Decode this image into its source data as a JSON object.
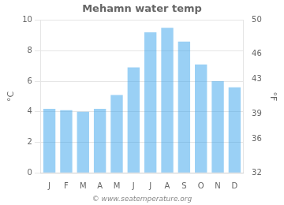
{
  "chart_data": {
    "type": "bar",
    "title": "Mehamn water temp",
    "categories": [
      "J",
      "F",
      "M",
      "A",
      "M",
      "J",
      "J",
      "A",
      "S",
      "O",
      "N",
      "D"
    ],
    "values": [
      4.2,
      4.1,
      4.0,
      4.2,
      5.1,
      6.9,
      9.2,
      9.5,
      8.6,
      7.1,
      6.0,
      5.6
    ],
    "ylabel": "°C",
    "y2label": "°F",
    "ylim": [
      0,
      10
    ],
    "yticks": [
      0,
      2,
      4,
      6,
      8,
      10
    ],
    "y2lim": [
      32,
      50
    ],
    "y2ticks": [
      32,
      36,
      39,
      43,
      46,
      50
    ],
    "grid": true,
    "annotations": [
      "© www.seatemperature.org"
    ]
  }
}
